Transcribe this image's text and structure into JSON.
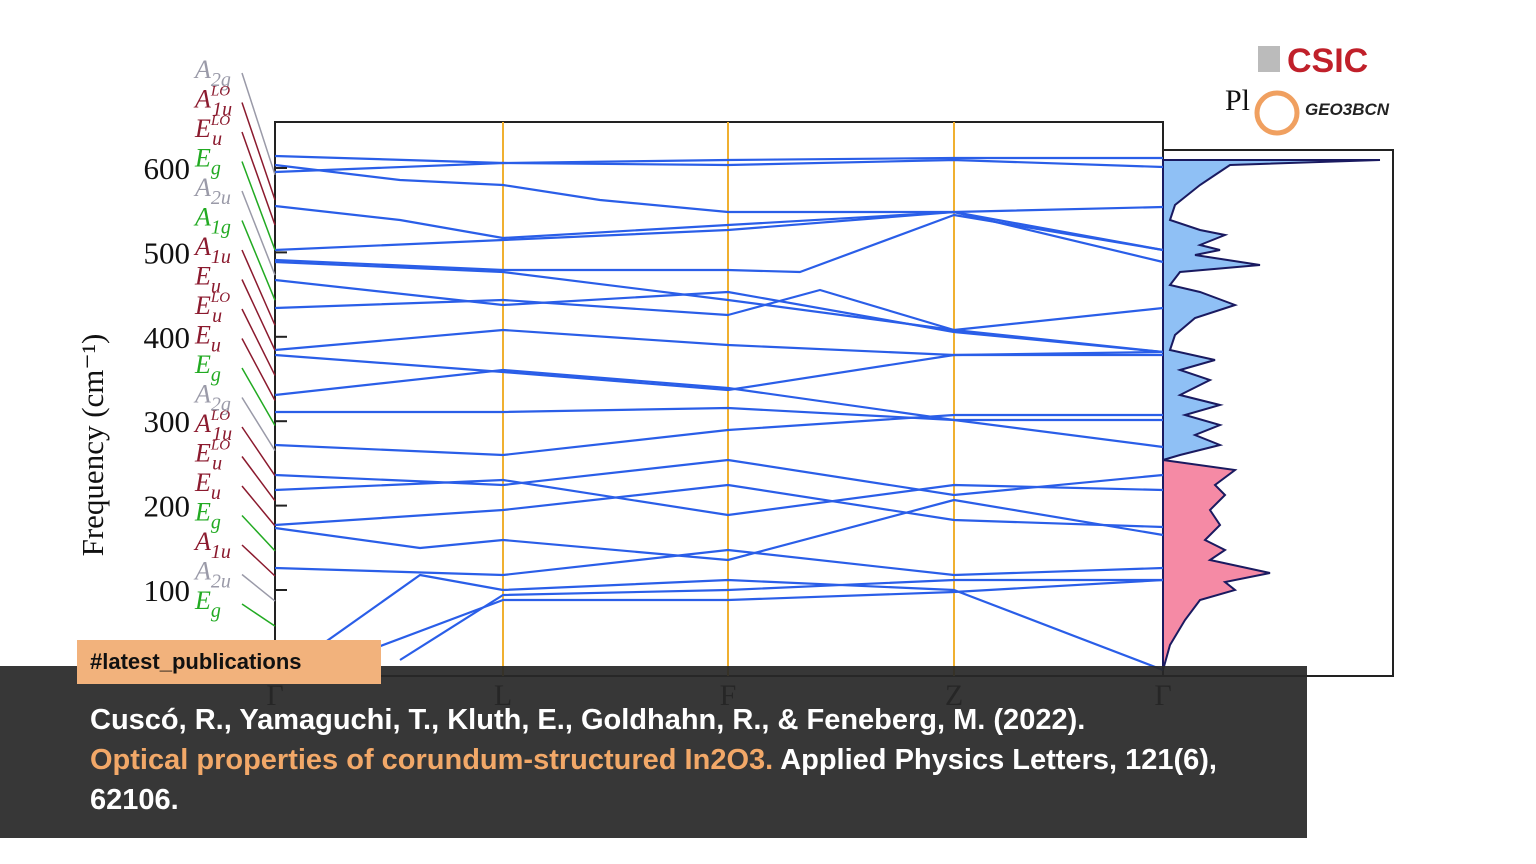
{
  "figure": {
    "y_axis_label": "Frequency (cm⁻¹)",
    "y_ticks": [
      "600",
      "500",
      "400",
      "300",
      "200",
      "100"
    ],
    "x_ticks": [
      "Γ",
      "L",
      "F",
      "Z",
      "Γ"
    ],
    "dos_label": "Pl",
    "mode_labels": [
      {
        "main": "A",
        "sub": "2g",
        "color": "#9a9aa8"
      },
      {
        "main": "A",
        "sub": "1u",
        "sup": "LO",
        "color": "#8b1a2e"
      },
      {
        "main": "E",
        "sub": "u",
        "sup": "LO",
        "color": "#8b1a2e"
      },
      {
        "main": "E",
        "sub": "g",
        "color": "#22aa22"
      },
      {
        "main": "A",
        "sub": "2u",
        "color": "#9a9aa8"
      },
      {
        "main": "A",
        "sub": "1g",
        "color": "#22aa22"
      },
      {
        "main": "A",
        "sub": "1u",
        "color": "#8b1a2e"
      },
      {
        "main": "E",
        "sub": "u",
        "color": "#8b1a2e"
      },
      {
        "main": "E",
        "sub": "u",
        "sup": "LO",
        "color": "#8b1a2e"
      },
      {
        "main": "E",
        "sub": "u",
        "color": "#8b1a2e"
      },
      {
        "main": "E",
        "sub": "g",
        "color": "#22aa22"
      },
      {
        "main": "A",
        "sub": "2g",
        "color": "#9a9aa8"
      },
      {
        "main": "A",
        "sub": "1u",
        "sup": "LO",
        "color": "#8b1a2e"
      },
      {
        "main": "E",
        "sub": "u",
        "sup": "LO",
        "color": "#8b1a2e"
      },
      {
        "main": "E",
        "sub": "u",
        "color": "#8b1a2e"
      },
      {
        "main": "E",
        "sub": "g",
        "color": "#22aa22"
      },
      {
        "main": "A",
        "sub": "1u",
        "color": "#8b1a2e"
      },
      {
        "main": "A",
        "sub": "2u",
        "color": "#9a9aa8"
      },
      {
        "main": "E",
        "sub": "g",
        "color": "#22aa22"
      }
    ]
  },
  "logos": {
    "csic": "CSIC",
    "geo3bcn": "GEO3BCN"
  },
  "tag": "#latest_publications",
  "citation": {
    "authors": "Cuscó, R., Yamaguchi, T., Kluth, E., Goldhahn, R., & Feneberg, M. (2022).",
    "title": "Optical properties of corundum-structured In2O3.",
    "journal": "Applied Physics Letters, 121(6), 62106."
  }
}
